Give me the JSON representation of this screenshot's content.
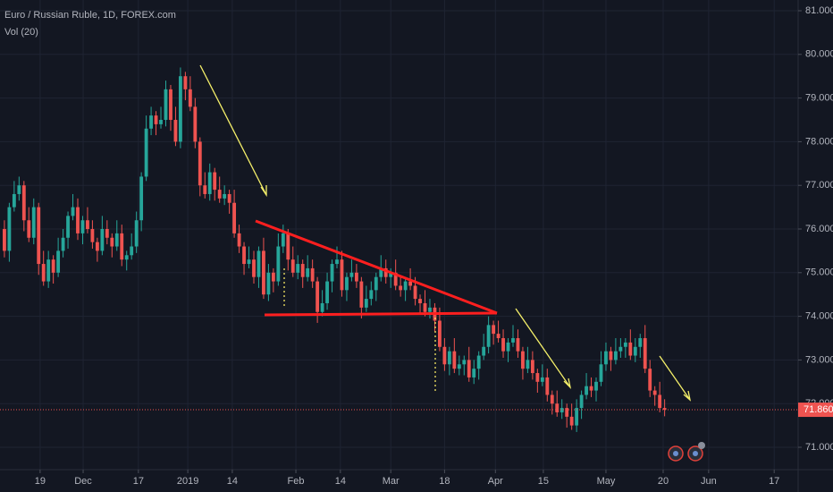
{
  "chart_data": {
    "type": "candlestick",
    "title": "Euro / Russian Ruble, 1D, FOREX.com",
    "indicator": "Vol (20)",
    "up_color": "#26a69a",
    "down_color": "#ef5350",
    "grid": true,
    "xlim": [
      -0.9,
      162.3
    ],
    "xticks": [
      {
        "value": 7.3,
        "label": "19"
      },
      {
        "value": 16.1,
        "label": "Dec"
      },
      {
        "value": 27.4,
        "label": "17"
      },
      {
        "value": 37.5,
        "label": "2019"
      },
      {
        "value": 46.6,
        "label": "14"
      },
      {
        "value": 59.6,
        "label": "Feb"
      },
      {
        "value": 68.7,
        "label": "14"
      },
      {
        "value": 79,
        "label": "Mar"
      },
      {
        "value": 90,
        "label": "18"
      },
      {
        "value": 100.4,
        "label": "Apr"
      },
      {
        "value": 110.2,
        "label": "15"
      },
      {
        "value": 123,
        "label": "May"
      },
      {
        "value": 134.7,
        "label": "20"
      },
      {
        "value": 144,
        "label": "Jun"
      },
      {
        "value": 157.4,
        "label": "17"
      }
    ],
    "ylim": [
      70.488,
      81.246
    ],
    "yticks": [
      {
        "value": 71,
        "label": "71.000"
      },
      {
        "value": 72,
        "label": "72.000"
      },
      {
        "value": 73,
        "label": "73.000"
      },
      {
        "value": 74,
        "label": "74.000"
      },
      {
        "value": 75,
        "label": "75.000"
      },
      {
        "value": 76,
        "label": "76.000"
      },
      {
        "value": 77,
        "label": "77.000"
      },
      {
        "value": 78,
        "label": "78.000"
      },
      {
        "value": 79,
        "label": "79.000"
      },
      {
        "value": 80,
        "label": "80.000"
      },
      {
        "value": 81,
        "label": "81.000"
      }
    ],
    "last_price": {
      "value": 71.86,
      "label": "71.860"
    },
    "candles": [
      [
        76.0,
        76.2,
        75.35,
        75.5
      ],
      [
        75.5,
        76.6,
        75.25,
        76.5
      ],
      [
        76.5,
        77.1,
        76.4,
        76.8
      ],
      [
        76.8,
        77.2,
        76.65,
        77.0
      ],
      [
        77.0,
        77.1,
        75.95,
        76.2
      ],
      [
        76.2,
        76.5,
        75.7,
        75.8
      ],
      [
        75.8,
        76.7,
        75.65,
        76.5
      ],
      [
        76.5,
        76.6,
        74.95,
        75.2
      ],
      [
        75.2,
        75.5,
        74.7,
        74.8
      ],
      [
        74.8,
        75.5,
        74.65,
        75.3
      ],
      [
        75.3,
        75.4,
        74.75,
        75.0
      ],
      [
        75.0,
        75.8,
        74.9,
        75.5
      ],
      [
        75.5,
        76.0,
        75.35,
        75.8
      ],
      [
        75.8,
        76.4,
        75.55,
        76.3
      ],
      [
        76.3,
        76.8,
        76.2,
        76.5
      ],
      [
        76.5,
        76.7,
        75.75,
        75.9
      ],
      [
        75.9,
        76.3,
        75.65,
        76.2
      ],
      [
        76.2,
        76.5,
        75.9,
        76.0
      ],
      [
        76.0,
        76.2,
        75.55,
        75.7
      ],
      [
        75.7,
        75.8,
        75.25,
        75.5
      ],
      [
        75.5,
        76.3,
        75.4,
        76.0
      ],
      [
        76.0,
        76.2,
        75.65,
        75.8
      ],
      [
        75.8,
        75.9,
        75.35,
        75.6
      ],
      [
        75.6,
        76.2,
        75.5,
        75.9
      ],
      [
        75.9,
        76.1,
        75.15,
        75.3
      ],
      [
        75.3,
        75.5,
        75.05,
        75.4
      ],
      [
        75.4,
        75.9,
        75.3,
        75.6
      ],
      [
        75.6,
        76.4,
        75.45,
        76.2
      ],
      [
        76.2,
        77.3,
        75.95,
        77.2
      ],
      [
        77.2,
        78.6,
        77.1,
        78.3
      ],
      [
        78.3,
        78.8,
        78.15,
        78.6
      ],
      [
        78.6,
        78.7,
        78.15,
        78.4
      ],
      [
        78.4,
        78.8,
        78.3,
        78.5
      ],
      [
        78.5,
        79.4,
        78.35,
        79.2
      ],
      [
        79.2,
        79.3,
        78.25,
        78.5
      ],
      [
        78.5,
        78.8,
        77.9,
        78.0
      ],
      [
        78.0,
        79.7,
        77.85,
        79.5
      ],
      [
        79.5,
        79.6,
        78.95,
        79.2
      ],
      [
        79.2,
        79.5,
        78.7,
        78.8
      ],
      [
        78.8,
        79.0,
        77.85,
        78.0
      ],
      [
        78.0,
        78.1,
        76.75,
        77.0
      ],
      [
        77.0,
        77.3,
        76.7,
        76.8
      ],
      [
        76.8,
        77.5,
        76.65,
        77.3
      ],
      [
        77.3,
        77.4,
        76.65,
        76.9
      ],
      [
        76.9,
        77.2,
        76.6,
        76.7
      ],
      [
        76.7,
        77.0,
        76.55,
        76.8
      ],
      [
        76.8,
        76.9,
        76.35,
        76.6
      ],
      [
        76.6,
        76.9,
        75.8,
        75.9
      ],
      [
        75.9,
        76.1,
        75.45,
        75.6
      ],
      [
        75.6,
        75.7,
        74.95,
        75.2
      ],
      [
        75.2,
        75.6,
        75.1,
        75.3
      ],
      [
        75.3,
        75.5,
        74.75,
        74.9
      ],
      [
        74.9,
        75.6,
        74.65,
        75.5
      ],
      [
        75.5,
        75.8,
        74.4,
        74.5
      ],
      [
        74.5,
        75.2,
        74.35,
        75.0
      ],
      [
        75.0,
        75.1,
        74.55,
        74.8
      ],
      [
        74.8,
        75.9,
        74.7,
        75.6
      ],
      [
        75.6,
        76.1,
        75.45,
        75.9
      ],
      [
        75.9,
        76.0,
        75.05,
        75.3
      ],
      [
        75.3,
        75.6,
        74.9,
        75.0
      ],
      [
        75.0,
        75.4,
        74.85,
        75.2
      ],
      [
        75.2,
        75.3,
        74.65,
        74.9
      ],
      [
        74.9,
        75.4,
        74.8,
        75.1
      ],
      [
        75.1,
        75.3,
        74.65,
        74.8
      ],
      [
        74.8,
        74.9,
        73.85,
        74.1
      ],
      [
        74.1,
        74.6,
        74.0,
        74.3
      ],
      [
        74.3,
        75.0,
        74.15,
        74.8
      ],
      [
        74.8,
        75.3,
        74.55,
        75.2
      ],
      [
        75.2,
        75.6,
        75.1,
        75.3
      ],
      [
        75.3,
        75.5,
        74.45,
        74.6
      ],
      [
        74.6,
        75.0,
        74.35,
        74.9
      ],
      [
        74.9,
        75.3,
        74.8,
        75.0
      ],
      [
        75.0,
        75.2,
        74.65,
        74.8
      ],
      [
        74.8,
        74.9,
        73.95,
        74.2
      ],
      [
        74.2,
        74.7,
        74.1,
        74.4
      ],
      [
        74.4,
        74.8,
        74.25,
        74.6
      ],
      [
        74.6,
        75.0,
        74.35,
        74.9
      ],
      [
        74.9,
        75.4,
        74.8,
        75.1
      ],
      [
        75.1,
        75.3,
        74.75,
        74.9
      ],
      [
        74.9,
        75.1,
        74.65,
        75.0
      ],
      [
        75.0,
        75.3,
        74.6,
        74.7
      ],
      [
        74.7,
        74.9,
        74.45,
        74.6
      ],
      [
        74.6,
        74.9,
        74.35,
        74.8
      ],
      [
        74.8,
        75.1,
        74.6,
        74.7
      ],
      [
        74.7,
        74.9,
        74.25,
        74.4
      ],
      [
        74.4,
        74.5,
        74.05,
        74.3
      ],
      [
        74.3,
        74.6,
        74.0,
        74.1
      ],
      [
        74.1,
        74.4,
        73.95,
        74.2
      ],
      [
        74.2,
        74.3,
        73.65,
        73.9
      ],
      [
        73.9,
        74.2,
        73.2,
        73.3
      ],
      [
        73.3,
        73.5,
        72.75,
        72.9
      ],
      [
        72.9,
        73.3,
        72.65,
        73.2
      ],
      [
        73.2,
        73.5,
        72.7,
        72.8
      ],
      [
        72.8,
        73.1,
        72.65,
        72.9
      ],
      [
        72.9,
        73.1,
        72.65,
        73.0
      ],
      [
        73.0,
        73.3,
        72.5,
        72.6
      ],
      [
        72.6,
        73.0,
        72.45,
        72.8
      ],
      [
        72.8,
        73.2,
        72.55,
        73.1
      ],
      [
        73.1,
        73.6,
        73.0,
        73.3
      ],
      [
        73.3,
        74.0,
        73.15,
        73.8
      ],
      [
        73.8,
        73.9,
        73.35,
        73.6
      ],
      [
        73.6,
        73.9,
        73.4,
        73.5
      ],
      [
        73.5,
        73.7,
        73.05,
        73.2
      ],
      [
        73.2,
        73.5,
        72.95,
        73.4
      ],
      [
        73.4,
        73.8,
        73.3,
        73.5
      ],
      [
        73.5,
        73.7,
        73.05,
        73.2
      ],
      [
        73.2,
        73.3,
        72.55,
        72.8
      ],
      [
        72.8,
        73.3,
        72.7,
        73.0
      ],
      [
        73.0,
        73.2,
        72.55,
        72.7
      ],
      [
        72.7,
        72.8,
        72.25,
        72.5
      ],
      [
        72.5,
        72.9,
        72.4,
        72.6
      ],
      [
        72.6,
        72.8,
        72.05,
        72.2
      ],
      [
        72.2,
        72.3,
        71.75,
        72.0
      ],
      [
        72.0,
        72.3,
        71.7,
        71.8
      ],
      [
        71.8,
        72.1,
        71.65,
        71.9
      ],
      [
        71.9,
        72.0,
        71.45,
        71.7
      ],
      [
        71.7,
        72.0,
        71.4,
        71.5
      ],
      [
        71.5,
        72.1,
        71.35,
        71.9
      ],
      [
        71.9,
        72.3,
        71.65,
        72.2
      ],
      [
        72.2,
        72.7,
        72.1,
        72.4
      ],
      [
        72.4,
        72.6,
        72.15,
        72.3
      ],
      [
        72.3,
        72.6,
        72.05,
        72.5
      ],
      [
        72.5,
        73.2,
        72.4,
        72.9
      ],
      [
        72.9,
        73.4,
        72.75,
        73.2
      ],
      [
        73.2,
        73.3,
        72.75,
        73.0
      ],
      [
        73.0,
        73.5,
        72.9,
        73.2
      ],
      [
        73.2,
        73.5,
        73.05,
        73.3
      ],
      [
        73.3,
        73.5,
        73.05,
        73.4
      ],
      [
        73.4,
        73.7,
        73.0,
        73.1
      ],
      [
        73.1,
        73.5,
        72.95,
        73.3
      ],
      [
        73.3,
        73.6,
        73.05,
        73.5
      ],
      [
        73.5,
        73.8,
        72.7,
        72.8
      ],
      [
        72.8,
        73.0,
        72.15,
        72.3
      ],
      [
        72.3,
        72.4,
        71.95,
        72.2
      ],
      [
        72.2,
        72.5,
        71.8,
        71.9
      ],
      [
        71.9,
        72.1,
        71.71,
        71.86
      ]
    ]
  }
}
